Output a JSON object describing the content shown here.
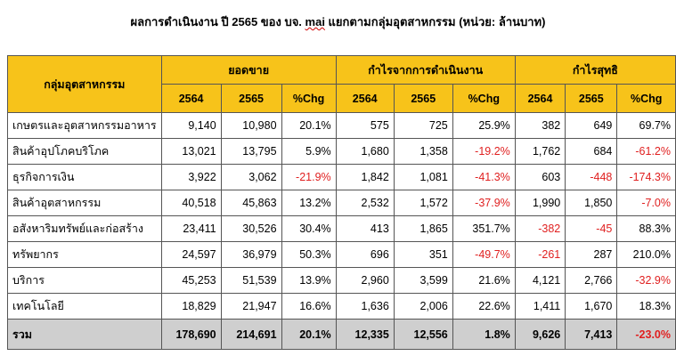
{
  "title": {
    "before": "ผลการดำเนินงาน ปี 2565 ของ บจ. ",
    "mai": "mai",
    "after": " แยกตามกลุ่มอุตสาหกรรม (หน่วย: ล้านบาท)"
  },
  "header": {
    "industry": "กลุ่มอุตสาหกรรม",
    "groups": [
      "ยอดขาย",
      "กำไรจากการดำเนินงาน",
      "กำไรสุทธิ"
    ],
    "subcols": [
      "2564",
      "2565",
      "%Chg"
    ]
  },
  "rows": [
    {
      "name": "เกษตรและอุตสาหกรรมอาหาร",
      "cells": [
        "9,140",
        "10,980",
        "20.1%",
        "575",
        "725",
        "25.9%",
        "382",
        "649",
        "69.7%"
      ]
    },
    {
      "name": "สินค้าอุปโภคบริโภค",
      "cells": [
        "13,021",
        "13,795",
        "5.9%",
        "1,680",
        "1,358",
        "-19.2%",
        "1,762",
        "684",
        "-61.2%"
      ]
    },
    {
      "name": "ธุรกิจการเงิน",
      "cells": [
        "3,922",
        "3,062",
        "-21.9%",
        "1,842",
        "1,081",
        "-41.3%",
        "603",
        "-448",
        "-174.3%"
      ]
    },
    {
      "name": "สินค้าอุตสาหกรรม",
      "cells": [
        "40,518",
        "45,863",
        "13.2%",
        "2,532",
        "1,572",
        "-37.9%",
        "1,990",
        "1,850",
        "-7.0%"
      ]
    },
    {
      "name": "อสังหาริมทรัพย์และก่อสร้าง",
      "cells": [
        "23,411",
        "30,526",
        "30.4%",
        "413",
        "1,865",
        "351.7%",
        "-382",
        "-45",
        "88.3%"
      ]
    },
    {
      "name": "ทรัพยากร",
      "cells": [
        "24,597",
        "36,979",
        "50.3%",
        "696",
        "351",
        "-49.7%",
        "-261",
        "287",
        "210.0%"
      ]
    },
    {
      "name": "บริการ",
      "cells": [
        "45,253",
        "51,539",
        "13.9%",
        "2,960",
        "3,599",
        "21.6%",
        "4,121",
        "2,766",
        "-32.9%"
      ]
    },
    {
      "name": "เทคโนโลยี",
      "cells": [
        "18,829",
        "21,947",
        "16.6%",
        "1,636",
        "2,006",
        "22.6%",
        "1,411",
        "1,670",
        "18.3%"
      ]
    }
  ],
  "total": {
    "name": "รวม",
    "cells": [
      "178,690",
      "214,691",
      "20.1%",
      "12,335",
      "12,556",
      "1.8%",
      "9,626",
      "7,413",
      "-23.0%"
    ]
  },
  "colors": {
    "header_bg": "#f7c31a",
    "total_bg": "#cfcfcf",
    "negative": "#e02020"
  }
}
